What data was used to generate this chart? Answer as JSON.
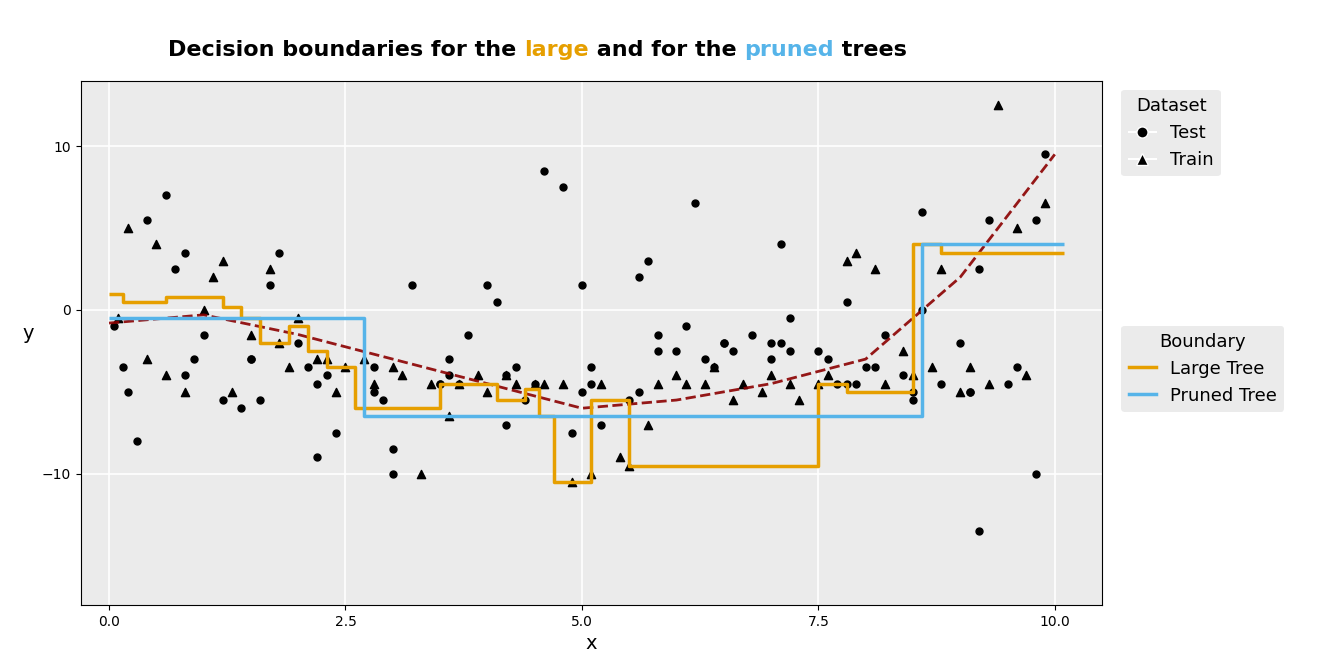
{
  "title_parts": [
    {
      "text": "Decision boundaries for the ",
      "color": "#000000"
    },
    {
      "text": "large",
      "color": "#E69F00"
    },
    {
      "text": " and for the ",
      "color": "#000000"
    },
    {
      "text": "pruned",
      "color": "#56B4E9"
    },
    {
      "text": " trees",
      "color": "#000000"
    }
  ],
  "xlabel": "x",
  "ylabel": "y",
  "xlim": [
    -0.3,
    10.5
  ],
  "ylim": [
    -18,
    14
  ],
  "background_color": "#EBEBEB",
  "grid_color": "#FFFFFF",
  "large_tree_color": "#E69F00",
  "pruned_tree_color": "#56B4E9",
  "true_boundary_color": "#8B0000",
  "large_tree_lw": 2.5,
  "pruned_tree_lw": 2.5,
  "true_boundary_lw": 2.0,
  "large_tree_x": [
    0.0,
    0.15,
    0.15,
    0.6,
    0.6,
    1.2,
    1.2,
    1.4,
    1.4,
    1.6,
    1.6,
    1.9,
    1.9,
    2.1,
    2.1,
    2.3,
    2.3,
    2.6,
    2.6,
    3.5,
    3.5,
    4.1,
    4.1,
    4.4,
    4.4,
    4.55,
    4.55,
    4.7,
    4.7,
    5.1,
    5.1,
    5.5,
    5.5,
    7.5,
    7.5,
    7.8,
    7.8,
    8.5,
    8.5,
    8.8,
    8.8,
    10.1
  ],
  "large_tree_y": [
    1.0,
    1.0,
    0.5,
    0.5,
    0.8,
    0.8,
    0.2,
    0.2,
    -0.5,
    -0.5,
    -2.0,
    -2.0,
    -1.0,
    -1.0,
    -2.5,
    -2.5,
    -3.5,
    -3.5,
    -6.0,
    -6.0,
    -4.5,
    -4.5,
    -5.5,
    -5.5,
    -4.8,
    -4.8,
    -6.5,
    -6.5,
    -10.5,
    -10.5,
    -5.5,
    -5.5,
    -9.5,
    -9.5,
    -4.5,
    -4.5,
    -5.0,
    -5.0,
    4.0,
    4.0,
    3.5,
    3.5
  ],
  "pruned_tree_x": [
    0.0,
    2.7,
    2.7,
    8.6,
    8.6,
    10.1
  ],
  "pruned_tree_y": [
    -0.5,
    -0.5,
    -6.5,
    -6.5,
    4.0,
    4.0
  ],
  "true_boundary_x": [
    0.0,
    1.0,
    2.0,
    3.0,
    4.0,
    5.0,
    6.0,
    7.0,
    8.0,
    9.0,
    10.0
  ],
  "true_boundary_y": [
    -0.8,
    -0.3,
    -1.5,
    -3.0,
    -4.5,
    -6.0,
    -5.5,
    -4.5,
    -3.0,
    2.0,
    9.5
  ],
  "test_points_x": [
    0.05,
    0.15,
    0.4,
    0.8,
    1.0,
    1.5,
    1.7,
    2.0,
    2.2,
    2.8,
    3.2,
    3.5,
    3.8,
    4.0,
    4.2,
    4.5,
    4.8,
    5.0,
    5.2,
    5.5,
    5.8,
    6.0,
    6.2,
    6.5,
    6.8,
    7.0,
    7.2,
    7.5,
    7.8,
    8.0,
    8.2,
    8.5,
    8.8,
    9.0,
    9.2,
    9.5,
    9.8,
    0.3,
    0.6,
    1.2,
    1.8,
    2.4,
    3.0,
    3.6,
    4.1,
    4.6,
    5.1,
    5.6,
    6.1,
    6.6,
    7.1,
    7.6,
    8.1,
    8.6,
    9.1,
    9.6,
    0.7,
    1.4,
    2.1,
    2.8,
    3.5,
    4.2,
    4.9,
    5.6,
    6.3,
    7.0,
    7.7,
    8.4,
    9.1,
    9.8,
    0.9,
    1.6,
    2.3,
    3.0,
    3.7,
    4.4,
    5.1,
    5.8,
    6.5,
    7.2,
    7.9,
    8.6,
    9.3,
    0.2,
    0.8,
    1.5,
    2.2,
    2.9,
    3.6,
    4.3,
    5.0,
    5.7,
    6.4,
    7.1,
    7.8,
    8.5,
    9.2,
    9.9
  ],
  "test_points_y": [
    -1.0,
    -3.5,
    5.5,
    -4.0,
    -1.5,
    -3.0,
    1.5,
    -2.0,
    -4.5,
    -3.5,
    1.5,
    -4.5,
    -1.5,
    1.5,
    -4.0,
    -4.5,
    7.5,
    1.5,
    -7.0,
    -5.5,
    -1.5,
    -2.5,
    6.5,
    -2.0,
    -1.5,
    -3.0,
    -0.5,
    -2.5,
    -4.5,
    -3.5,
    -1.5,
    -5.0,
    -4.5,
    -2.0,
    -13.5,
    -4.5,
    5.5,
    -8.0,
    7.0,
    -5.5,
    3.5,
    -7.5,
    -10.0,
    -4.0,
    0.5,
    8.5,
    -3.5,
    2.0,
    -1.0,
    -2.5,
    -2.0,
    -3.0,
    -3.5,
    0.0,
    -5.0,
    -3.5,
    2.5,
    -6.0,
    -3.5,
    -5.0,
    -4.5,
    -7.0,
    -7.5,
    -5.0,
    -3.0,
    -2.0,
    -4.5,
    -4.0,
    -5.0,
    -10.0,
    -3.0,
    -5.5,
    -4.0,
    -8.5,
    -4.5,
    -5.5,
    -4.5,
    -2.5,
    -2.0,
    -2.5,
    -4.5,
    6.0,
    5.5,
    -5.0,
    3.5,
    -3.0,
    -9.0,
    -5.5,
    -3.0,
    -3.5,
    -5.0,
    3.0,
    -3.5,
    4.0,
    0.5,
    -5.5,
    2.5,
    9.5
  ],
  "train_points_x": [
    0.1,
    0.2,
    0.5,
    1.0,
    1.2,
    1.5,
    1.8,
    2.0,
    2.3,
    2.5,
    2.7,
    3.0,
    3.3,
    3.6,
    3.9,
    4.2,
    4.5,
    4.8,
    5.1,
    5.4,
    5.7,
    6.0,
    6.3,
    6.6,
    6.9,
    7.2,
    7.5,
    7.8,
    8.1,
    8.4,
    8.7,
    9.0,
    9.3,
    9.6,
    9.9,
    0.4,
    0.8,
    1.3,
    1.9,
    2.4,
    3.1,
    3.7,
    4.3,
    4.9,
    5.5,
    6.1,
    6.7,
    7.3,
    7.9,
    8.5,
    9.1,
    9.7,
    0.6,
    1.1,
    1.7,
    2.2,
    2.8,
    3.4,
    4.0,
    4.6,
    5.2,
    5.8,
    6.4,
    7.0,
    7.6,
    8.2,
    8.8,
    9.4
  ],
  "train_points_y": [
    -0.5,
    5.0,
    4.0,
    0.0,
    3.0,
    -1.5,
    -2.0,
    -0.5,
    -3.0,
    -3.5,
    -3.0,
    -3.5,
    -10.0,
    -6.5,
    -4.0,
    -4.0,
    -4.5,
    -4.5,
    -10.0,
    -9.0,
    -7.0,
    -4.0,
    -4.5,
    -5.5,
    -5.0,
    -4.5,
    -4.5,
    3.0,
    2.5,
    -2.5,
    -3.5,
    -5.0,
    -4.5,
    5.0,
    6.5,
    -3.0,
    -5.0,
    -5.0,
    -3.5,
    -5.0,
    -4.0,
    -4.5,
    -4.5,
    -10.5,
    -9.5,
    -4.5,
    -4.5,
    -5.5,
    3.5,
    -4.0,
    -3.5,
    -4.0,
    -4.0,
    2.0,
    2.5,
    -3.0,
    -4.5,
    -4.5,
    -5.0,
    -4.5,
    -4.5,
    -4.5,
    -3.5,
    -4.0,
    -4.0,
    -4.5,
    2.5,
    12.5
  ],
  "point_size_test": 25,
  "point_size_train": 35,
  "point_color": "#000000"
}
